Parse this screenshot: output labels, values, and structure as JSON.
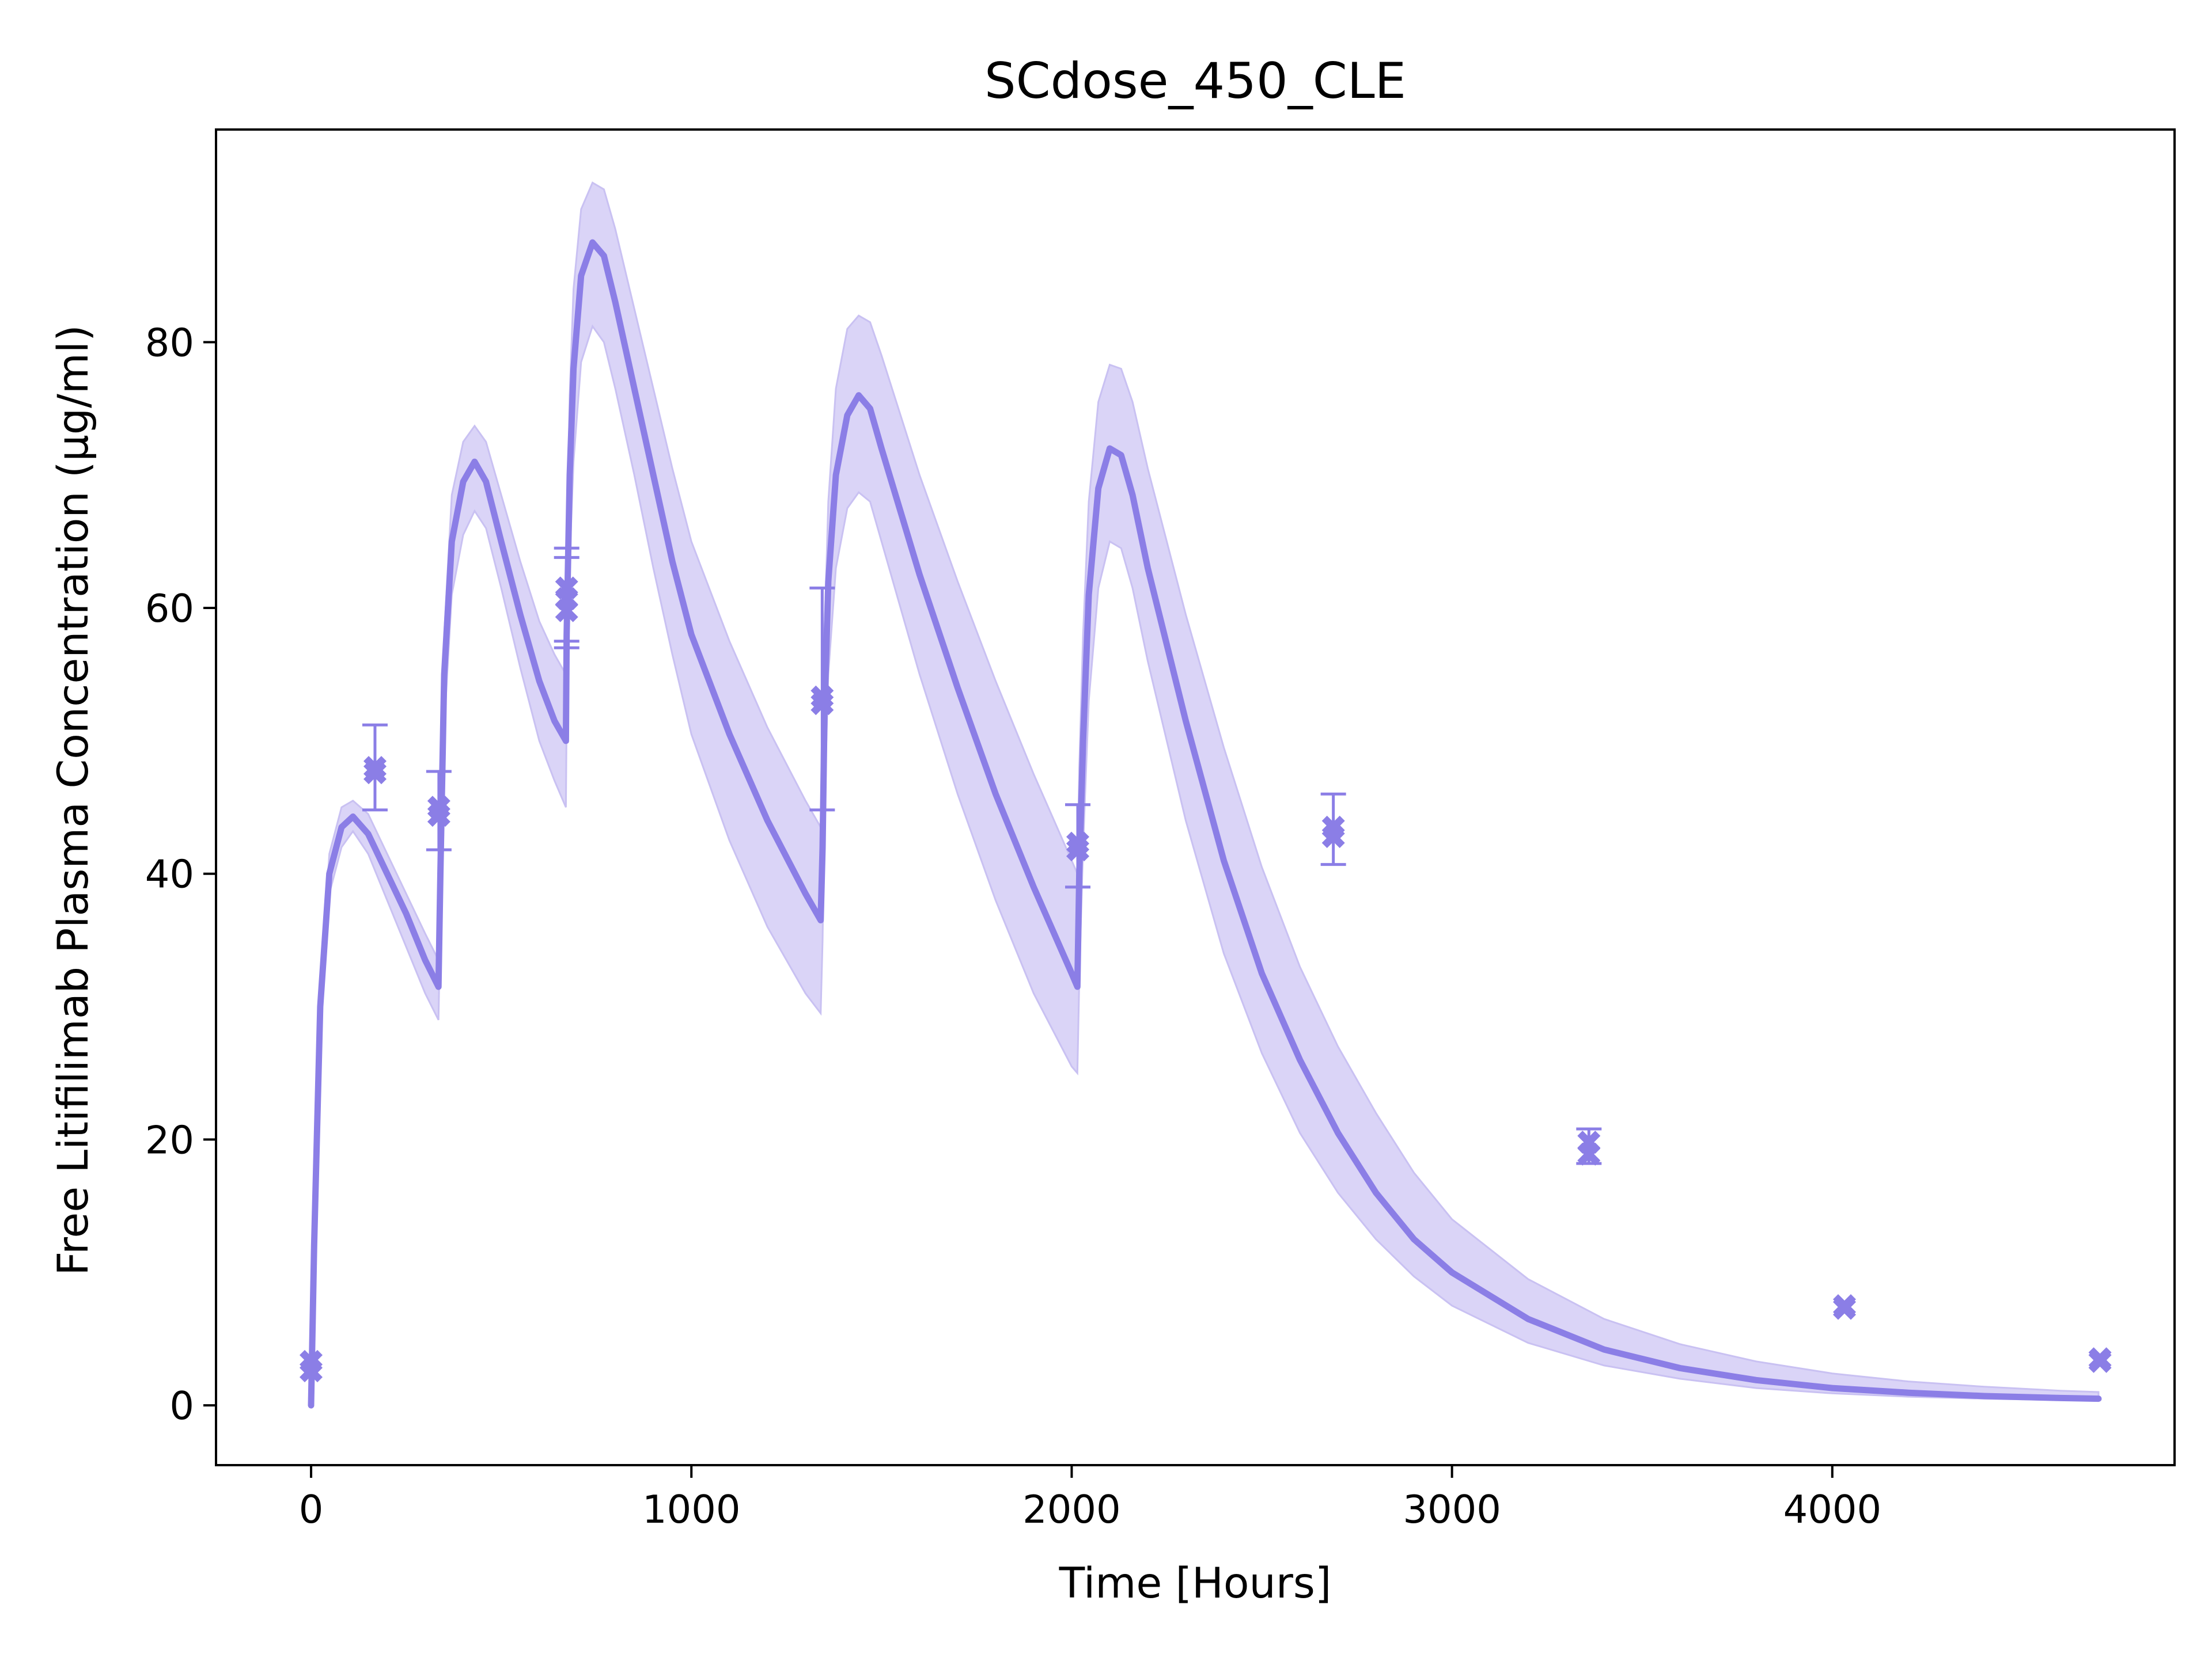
{
  "chart_data": {
    "type": "line",
    "title": "SCdose_450_CLE",
    "xlabel": "Time [Hours]",
    "ylabel": "Free Litifilimab Plasma Concentration (μg/ml)",
    "xlim": [
      -250,
      4900
    ],
    "ylim": [
      -4.5,
      96
    ],
    "xticks": [
      0,
      1000,
      2000,
      3000,
      4000
    ],
    "xtick_labels": [
      "0",
      "1000",
      "2000",
      "3000",
      "4000"
    ],
    "yticks": [
      0,
      20,
      40,
      60,
      80
    ],
    "ytick_labels": [
      "0",
      "20",
      "40",
      "60",
      "80"
    ],
    "grid": false,
    "colors": {
      "line": "#8b7ee6",
      "band": "#dad4f7",
      "band_edge": "#c9c1f2",
      "marker": "#8b7ee6"
    },
    "series": [
      {
        "kind": "model-median",
        "x": [
          0,
          8,
          24,
          48,
          80,
          110,
          150,
          200,
          250,
          300,
          335,
          340,
          350,
          370,
          400,
          430,
          460,
          500,
          550,
          600,
          640,
          670,
          672,
          680,
          690,
          710,
          740,
          770,
          800,
          850,
          900,
          950,
          1000,
          1100,
          1200,
          1300,
          1340,
          1345,
          1350,
          1360,
          1380,
          1410,
          1440,
          1470,
          1500,
          1600,
          1700,
          1800,
          1900,
          2000,
          2015,
          2020,
          2030,
          2045,
          2070,
          2100,
          2130,
          2160,
          2200,
          2300,
          2400,
          2500,
          2600,
          2700,
          2800,
          2900,
          3000,
          3200,
          3400,
          3600,
          3800,
          4000,
          4200,
          4400,
          4600,
          4700
        ],
        "values": [
          0,
          12,
          30,
          40,
          43.5,
          44.3,
          43,
          40,
          37,
          33.5,
          31.5,
          40,
          55,
          65,
          69.5,
          71,
          69.5,
          65,
          59.5,
          54.5,
          51.5,
          50,
          58,
          70,
          78,
          85,
          87.5,
          86.5,
          83,
          76.5,
          70,
          63.5,
          58,
          50.5,
          44,
          38.5,
          36.5,
          42,
          52,
          62,
          70,
          74.5,
          76,
          75,
          72,
          62.5,
          54,
          46,
          39,
          32.5,
          31.5,
          40,
          50,
          61,
          69,
          72,
          71.5,
          68.5,
          63,
          51.5,
          41,
          32.5,
          26,
          20.5,
          16,
          12.5,
          10,
          6.5,
          4.2,
          2.8,
          1.9,
          1.3,
          0.95,
          0.7,
          0.55,
          0.5
        ]
      },
      {
        "kind": "band-upper",
        "x": [
          0,
          8,
          24,
          48,
          80,
          110,
          150,
          200,
          250,
          300,
          335,
          340,
          350,
          370,
          400,
          430,
          460,
          500,
          550,
          600,
          640,
          670,
          672,
          680,
          690,
          710,
          740,
          770,
          800,
          850,
          900,
          950,
          1000,
          1100,
          1200,
          1300,
          1340,
          1345,
          1350,
          1360,
          1380,
          1410,
          1440,
          1470,
          1500,
          1600,
          1700,
          1800,
          1900,
          2000,
          2015,
          2020,
          2030,
          2045,
          2070,
          2100,
          2130,
          2160,
          2200,
          2300,
          2400,
          2500,
          2600,
          2700,
          2800,
          2900,
          3000,
          3200,
          3400,
          3600,
          3800,
          4000,
          4200,
          4400,
          4600,
          4700
        ],
        "values": [
          0.5,
          13,
          31,
          41.5,
          45,
          45.5,
          44.5,
          41.5,
          38.5,
          35.5,
          33.5,
          43,
          58,
          68.5,
          72.5,
          73.7,
          72.5,
          68.5,
          63.5,
          59,
          56.5,
          55,
          63,
          76,
          84,
          90,
          92,
          91.5,
          88.5,
          82.5,
          76.5,
          70.5,
          65,
          57.5,
          51,
          45.5,
          43.5,
          48,
          58,
          68,
          76.5,
          81,
          82,
          81.5,
          79,
          70,
          62,
          54.5,
          47.5,
          41,
          40,
          48,
          58,
          68,
          75.5,
          78.3,
          78,
          75.5,
          70.5,
          59.5,
          49.5,
          40.5,
          33,
          27,
          22,
          17.5,
          14,
          9.5,
          6.5,
          4.6,
          3.3,
          2.4,
          1.8,
          1.4,
          1.1,
          1.0
        ]
      },
      {
        "kind": "band-lower",
        "x": [
          0,
          8,
          24,
          48,
          80,
          110,
          150,
          200,
          250,
          300,
          335,
          340,
          350,
          370,
          400,
          430,
          460,
          500,
          550,
          600,
          640,
          670,
          672,
          680,
          690,
          710,
          740,
          770,
          800,
          850,
          900,
          950,
          1000,
          1100,
          1200,
          1300,
          1340,
          1345,
          1350,
          1360,
          1380,
          1410,
          1440,
          1470,
          1500,
          1600,
          1700,
          1800,
          1900,
          2000,
          2015,
          2020,
          2030,
          2045,
          2070,
          2100,
          2130,
          2160,
          2200,
          2300,
          2400,
          2500,
          2600,
          2700,
          2800,
          2900,
          3000,
          3200,
          3400,
          3600,
          3800,
          4000,
          4200,
          4400,
          4600,
          4700
        ],
        "values": [
          0,
          11,
          29,
          38.5,
          42,
          43.2,
          41.5,
          38,
          34.5,
          31,
          29,
          36.5,
          51,
          61,
          65.5,
          67.3,
          66,
          61.5,
          55.5,
          50,
          47,
          45,
          52,
          63.5,
          71,
          78.5,
          81.2,
          80,
          76.5,
          70,
          63,
          56.5,
          50.5,
          42.5,
          36,
          31,
          29.5,
          35,
          45,
          55,
          63,
          67.5,
          68.7,
          68,
          65,
          55,
          46,
          38,
          31,
          25.5,
          25,
          32,
          42,
          53,
          61.5,
          65,
          64.5,
          61.5,
          56,
          44,
          34,
          26.5,
          20.5,
          16,
          12.5,
          9.7,
          7.5,
          4.7,
          3.0,
          2.0,
          1.3,
          0.9,
          0.65,
          0.5,
          0.4,
          0.35
        ]
      }
    ],
    "observations": [
      {
        "x": 0,
        "y": 3.3,
        "err_low": 3.3,
        "err_high": 3.3
      },
      {
        "x": 0,
        "y": 2.6,
        "err_low": 2.6,
        "err_high": 2.6
      },
      {
        "x": 168,
        "y": 48,
        "err_low": 44.8,
        "err_high": 51.2
      },
      {
        "x": 168,
        "y": 47.6,
        "err_low": 47.6,
        "err_high": 47.6
      },
      {
        "x": 336,
        "y": 45,
        "err_low": 41.8,
        "err_high": 47.7
      },
      {
        "x": 336,
        "y": 44.4,
        "err_low": 44.4,
        "err_high": 44.4
      },
      {
        "x": 672,
        "y": 61.5,
        "err_low": 57.5,
        "err_high": 64.5
      },
      {
        "x": 672,
        "y": 60.7,
        "err_low": 57,
        "err_high": 63.8
      },
      {
        "x": 672,
        "y": 59.8,
        "err_low": 59.8,
        "err_high": 59.8
      },
      {
        "x": 1344,
        "y": 53.3,
        "err_low": 44.8,
        "err_high": 61.5
      },
      {
        "x": 1344,
        "y": 52.8,
        "err_low": 52.8,
        "err_high": 52.8
      },
      {
        "x": 2016,
        "y": 42.3,
        "err_low": 39,
        "err_high": 45.2
      },
      {
        "x": 2016,
        "y": 41.8,
        "err_low": 41.8,
        "err_high": 41.8
      },
      {
        "x": 2688,
        "y": 43.5,
        "err_low": 40.7,
        "err_high": 46
      },
      {
        "x": 2688,
        "y": 42.8,
        "err_low": 42.8,
        "err_high": 42.8
      },
      {
        "x": 3360,
        "y": 19.8,
        "err_low": 18.2,
        "err_high": 20.8
      },
      {
        "x": 3360,
        "y": 18.9,
        "err_low": 18.9,
        "err_high": 18.9
      },
      {
        "x": 4032,
        "y": 7.5,
        "err_low": 7.5,
        "err_high": 7.5
      },
      {
        "x": 4032,
        "y": 7.3,
        "err_low": 7.3,
        "err_high": 7.3
      },
      {
        "x": 4704,
        "y": 3.5,
        "err_low": 3.5,
        "err_high": 3.5
      },
      {
        "x": 4704,
        "y": 3.3,
        "err_low": 3.3,
        "err_high": 3.3
      }
    ]
  }
}
